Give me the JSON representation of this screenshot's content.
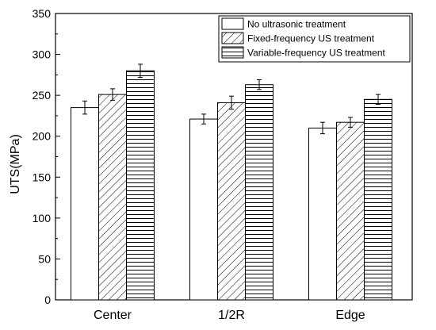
{
  "chart_data": {
    "type": "bar",
    "title": "",
    "xlabel": "",
    "ylabel": "UTS(MPa)",
    "ylim": [
      0,
      350
    ],
    "yticks": [
      0,
      50,
      100,
      150,
      200,
      250,
      300,
      350
    ],
    "categories": [
      "Center",
      "1/2R",
      "Edge"
    ],
    "series": [
      {
        "name": "No ultrasonic treatment",
        "pattern": "none",
        "values": [
          235,
          221,
          210
        ],
        "errors": [
          8,
          6,
          7
        ]
      },
      {
        "name": "Fixed-frequency US treatment",
        "pattern": "diagonal",
        "values": [
          251,
          241,
          217
        ],
        "errors": [
          7,
          8,
          6
        ]
      },
      {
        "name": "Variable-frequency US treatment",
        "pattern": "horizontal",
        "values": [
          280,
          263,
          245
        ],
        "errors": [
          8,
          6,
          6
        ]
      }
    ],
    "legend_position": "top-right",
    "grid": false
  }
}
